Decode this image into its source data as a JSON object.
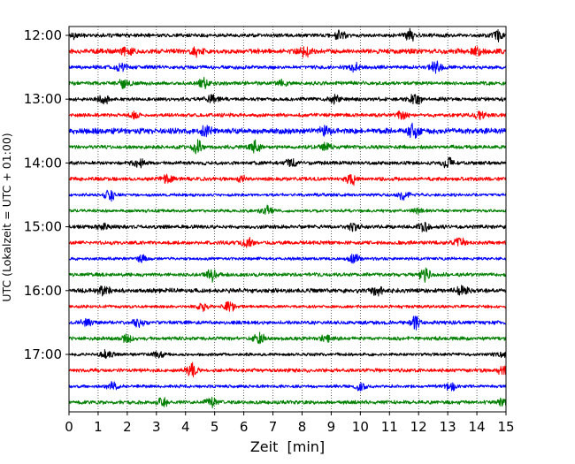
{
  "chart_data": {
    "type": "line",
    "title": "",
    "xlabel": "Zeit  [min]",
    "ylabel": "UTC (Lokalzeit = UTC + 01:00)",
    "xlim": [
      0,
      15
    ],
    "x_ticks": [
      "0",
      "1",
      "2",
      "3",
      "4",
      "5",
      "6",
      "7",
      "8",
      "9",
      "10",
      "11",
      "12",
      "13",
      "14",
      "15"
    ],
    "y_ticks": [
      "12:00",
      "13:00",
      "14:00",
      "15:00",
      "16:00",
      "17:00"
    ],
    "grid": "vertical dotted lines at each minute",
    "trace_interval_minutes": 15,
    "trace_color_cycle": [
      "#000000",
      "#ff0000",
      "#0000ff",
      "#008000"
    ],
    "traces": [
      {
        "start": "12:00",
        "color": "#000000",
        "amplitude": 0.3,
        "events": [
          {
            "t": 0.2,
            "a": 0.4
          },
          {
            "t": 9.3,
            "a": 0.8
          },
          {
            "t": 11.7,
            "a": 0.9
          },
          {
            "t": 14.7,
            "a": 0.8
          }
        ]
      },
      {
        "start": "12:15",
        "color": "#ff0000",
        "amplitude": 0.4,
        "events": [
          {
            "t": 2.0,
            "a": 0.6
          },
          {
            "t": 4.4,
            "a": 0.7
          },
          {
            "t": 8.1,
            "a": 0.9
          },
          {
            "t": 14.0,
            "a": 0.6
          }
        ]
      },
      {
        "start": "12:30",
        "color": "#0000ff",
        "amplitude": 0.3,
        "events": [
          {
            "t": 1.8,
            "a": 0.7
          },
          {
            "t": 9.8,
            "a": 0.6
          },
          {
            "t": 12.6,
            "a": 0.9
          }
        ]
      },
      {
        "start": "12:45",
        "color": "#008000",
        "amplitude": 0.3,
        "events": [
          {
            "t": 1.9,
            "a": 0.8
          },
          {
            "t": 4.6,
            "a": 0.7
          },
          {
            "t": 7.3,
            "a": 0.6
          }
        ]
      },
      {
        "start": "13:00",
        "color": "#000000",
        "amplitude": 0.3,
        "events": [
          {
            "t": 1.2,
            "a": 0.7
          },
          {
            "t": 4.9,
            "a": 0.6
          },
          {
            "t": 9.1,
            "a": 0.7
          },
          {
            "t": 11.9,
            "a": 0.9
          }
        ]
      },
      {
        "start": "13:15",
        "color": "#ff0000",
        "amplitude": 0.3,
        "events": [
          {
            "t": 2.3,
            "a": 0.5
          },
          {
            "t": 11.4,
            "a": 0.8
          },
          {
            "t": 14.1,
            "a": 0.7
          }
        ]
      },
      {
        "start": "13:30",
        "color": "#0000ff",
        "amplitude": 0.45,
        "events": [
          {
            "t": 4.7,
            "a": 0.7
          },
          {
            "t": 8.8,
            "a": 0.6
          },
          {
            "t": 11.8,
            "a": 1.0
          }
        ]
      },
      {
        "start": "13:45",
        "color": "#008000",
        "amplitude": 0.3,
        "events": [
          {
            "t": 4.4,
            "a": 0.9
          },
          {
            "t": 6.4,
            "a": 0.8
          },
          {
            "t": 8.8,
            "a": 0.6
          }
        ]
      },
      {
        "start": "14:00",
        "color": "#000000",
        "amplitude": 0.3,
        "events": [
          {
            "t": 2.4,
            "a": 0.6
          },
          {
            "t": 7.6,
            "a": 0.6
          },
          {
            "t": 13.0,
            "a": 0.7
          }
        ]
      },
      {
        "start": "14:15",
        "color": "#ff0000",
        "amplitude": 0.3,
        "events": [
          {
            "t": 3.4,
            "a": 0.6
          },
          {
            "t": 6.0,
            "a": 0.6
          },
          {
            "t": 9.7,
            "a": 0.8
          }
        ]
      },
      {
        "start": "14:30",
        "color": "#0000ff",
        "amplitude": 0.25,
        "events": [
          {
            "t": 1.4,
            "a": 1.0
          },
          {
            "t": 11.5,
            "a": 0.7
          }
        ]
      },
      {
        "start": "14:45",
        "color": "#008000",
        "amplitude": 0.25,
        "events": [
          {
            "t": 6.8,
            "a": 0.8
          },
          {
            "t": 12.0,
            "a": 0.5
          }
        ]
      },
      {
        "start": "15:00",
        "color": "#000000",
        "amplitude": 0.3,
        "events": [
          {
            "t": 1.2,
            "a": 0.6
          },
          {
            "t": 9.8,
            "a": 0.8
          },
          {
            "t": 12.2,
            "a": 0.6
          }
        ]
      },
      {
        "start": "15:15",
        "color": "#ff0000",
        "amplitude": 0.3,
        "events": [
          {
            "t": 6.1,
            "a": 0.8
          },
          {
            "t": 13.4,
            "a": 1.0
          }
        ]
      },
      {
        "start": "15:30",
        "color": "#0000ff",
        "amplitude": 0.25,
        "events": [
          {
            "t": 2.5,
            "a": 0.5
          },
          {
            "t": 9.8,
            "a": 0.8
          }
        ]
      },
      {
        "start": "15:45",
        "color": "#008000",
        "amplitude": 0.3,
        "events": [
          {
            "t": 4.9,
            "a": 0.9
          },
          {
            "t": 12.2,
            "a": 0.9
          }
        ]
      },
      {
        "start": "16:00",
        "color": "#000000",
        "amplitude": 0.35,
        "events": [
          {
            "t": 1.2,
            "a": 0.8
          },
          {
            "t": 10.6,
            "a": 0.7
          },
          {
            "t": 13.5,
            "a": 0.8
          }
        ]
      },
      {
        "start": "16:15",
        "color": "#ff0000",
        "amplitude": 0.25,
        "events": [
          {
            "t": 4.6,
            "a": 0.6
          },
          {
            "t": 5.5,
            "a": 0.8
          }
        ]
      },
      {
        "start": "16:30",
        "color": "#0000ff",
        "amplitude": 0.3,
        "events": [
          {
            "t": 0.6,
            "a": 0.6
          },
          {
            "t": 2.4,
            "a": 0.6
          },
          {
            "t": 11.9,
            "a": 0.9
          }
        ]
      },
      {
        "start": "16:45",
        "color": "#008000",
        "amplitude": 0.3,
        "events": [
          {
            "t": 2.0,
            "a": 0.6
          },
          {
            "t": 6.5,
            "a": 1.0
          },
          {
            "t": 8.8,
            "a": 0.5
          }
        ]
      },
      {
        "start": "17:00",
        "color": "#000000",
        "amplitude": 0.25,
        "events": [
          {
            "t": 1.3,
            "a": 0.7
          },
          {
            "t": 3.1,
            "a": 0.5
          },
          {
            "t": 14.8,
            "a": 0.5
          }
        ]
      },
      {
        "start": "17:15",
        "color": "#ff0000",
        "amplitude": 0.3,
        "events": [
          {
            "t": 4.2,
            "a": 0.9
          },
          {
            "t": 14.9,
            "a": 0.9
          }
        ]
      },
      {
        "start": "17:30",
        "color": "#0000ff",
        "amplitude": 0.25,
        "events": [
          {
            "t": 1.5,
            "a": 0.6
          },
          {
            "t": 10.0,
            "a": 0.6
          },
          {
            "t": 13.1,
            "a": 0.7
          }
        ]
      },
      {
        "start": "17:45",
        "color": "#008000",
        "amplitude": 0.3,
        "events": [
          {
            "t": 3.2,
            "a": 0.7
          },
          {
            "t": 4.9,
            "a": 0.8
          },
          {
            "t": 14.9,
            "a": 0.6
          }
        ]
      }
    ]
  }
}
